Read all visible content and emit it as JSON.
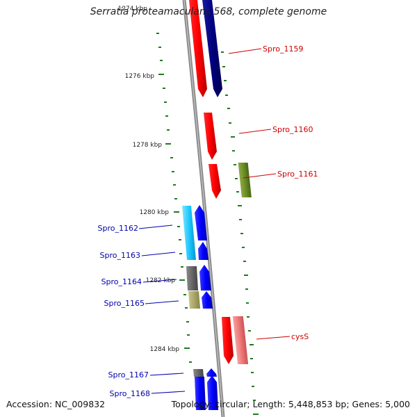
{
  "title": "Serratia proteamaculans 568, complete genome",
  "accession": "Accession: NC_009832",
  "summary": "Topology: circular; Length: 5,448,853 bp; Genes: 5,000",
  "colors": {
    "backbone": "#8a8a8a",
    "tick": "#1f7a1f",
    "label_forward": "#cc0000",
    "label_reverse": "#0000aa"
  },
  "ticks": [
    "1274 kbp",
    "1276 kbp",
    "1278 kbp",
    "1280 kbp",
    "1282 kbp",
    "1284 kbp"
  ],
  "genes_right": [
    {
      "label": "Spro_1159",
      "color": "#cc0000"
    },
    {
      "label": "Spro_1160",
      "color": "#cc0000"
    },
    {
      "label": "Spro_1161",
      "color": "#cc0000"
    },
    {
      "label": "cysS",
      "color": "#cc0000"
    }
  ],
  "genes_left": [
    {
      "label": "Spro_1162",
      "color": "#0000aa"
    },
    {
      "label": "Spro_1163",
      "color": "#0000aa"
    },
    {
      "label": "Spro_1164",
      "color": "#0000aa"
    },
    {
      "label": "Spro_1165",
      "color": "#0000aa"
    },
    {
      "label": "Spro_1167",
      "color": "#0000aa"
    },
    {
      "label": "Spro_1168",
      "color": "#0000aa"
    }
  ]
}
